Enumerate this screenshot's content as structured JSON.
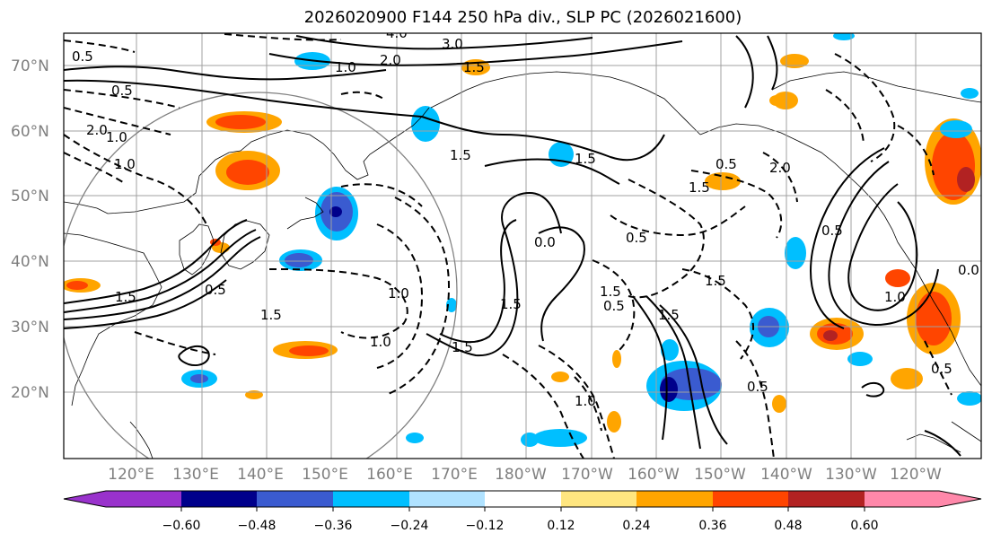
{
  "title": "2026020900 F144 250 hPa div., SLP PC (2026021600)",
  "lat_labels": [
    "70°N",
    "60°N",
    "50°N",
    "40°N",
    "30°N",
    "20°N"
  ],
  "lon_labels": [
    "120°E",
    "130°E",
    "140°E",
    "150°E",
    "160°E",
    "170°E",
    "180°W",
    "170°W",
    "160°W",
    "150°W",
    "140°W",
    "130°W",
    "120°W"
  ],
  "colorbar": {
    "ticks": [
      "−0.60",
      "−0.48",
      "−0.36",
      "−0.24",
      "−0.12",
      "0.12",
      "0.24",
      "0.36",
      "0.48",
      "0.60"
    ],
    "colors": [
      "#9932cc",
      "#00008b",
      "#3a5bd0",
      "#00bfff",
      "#b0e2ff",
      "#ffffff",
      "#ffe680",
      "#ffa500",
      "#ff4500",
      "#b22222",
      "#ff88aa"
    ]
  },
  "contour_labels": [
    "3.0",
    "2.0",
    "3.0",
    "4.0",
    "0.5",
    "1.0",
    "1.5",
    "2.0",
    "0.5",
    "1.5",
    "1.0",
    "2.0",
    "0.5",
    "1.5",
    "1.0",
    "0.5",
    "1.5",
    "0.5",
    "1.5",
    "2.0",
    "1.5",
    "0.0",
    "1.5",
    "0.5",
    "1.0",
    "1.5",
    "0.5",
    "1.0",
    "1.5",
    "1.0",
    "1.5",
    "0.0",
    "0.5",
    "1.5",
    "0.5",
    "1.0",
    "0.5",
    "1.5"
  ]
}
